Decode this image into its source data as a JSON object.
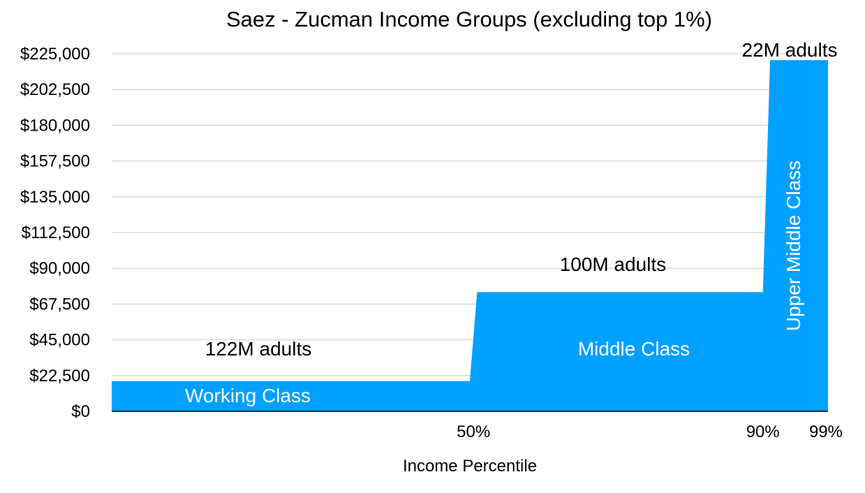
{
  "chart_data": {
    "type": "area",
    "title": "Saez - Zucman Income Groups (excluding top 1%)",
    "xlabel": "Income Percentile",
    "ylabel": "",
    "ylim": [
      0,
      225000
    ],
    "xlim": [
      0,
      99
    ],
    "y_ticks": [
      "$0",
      "$22,500",
      "$45,000",
      "$67,500",
      "$90,000",
      "$112,500",
      "$135,000",
      "$157,500",
      "$180,000",
      "$202,500",
      "$225,000"
    ],
    "y_tick_values": [
      0,
      22500,
      45000,
      67500,
      90000,
      112500,
      135000,
      157500,
      180000,
      202500,
      225000
    ],
    "x_ticks": [
      {
        "value": 50,
        "label": "50%"
      },
      {
        "value": 90,
        "label": "90%"
      },
      {
        "value": 99,
        "label": "99%"
      }
    ],
    "grid": true,
    "color": "#00a0ff",
    "points": [
      {
        "x": 0,
        "y": 19000
      },
      {
        "x": 49.5,
        "y": 19000
      },
      {
        "x": 50.5,
        "y": 75000
      },
      {
        "x": 90,
        "y": 75000
      },
      {
        "x": 91,
        "y": 221000
      },
      {
        "x": 99,
        "y": 221000
      }
    ],
    "groups": [
      {
        "label": "Working Class",
        "adults": "122M adults",
        "x_start": 0,
        "x_end": 50,
        "value": 19000
      },
      {
        "label": "Middle Class",
        "adults": "100M adults",
        "x_start": 50,
        "x_end": 90,
        "value": 75000
      },
      {
        "label": "Upper Middle Class",
        "adults": "22M adults",
        "x_start": 90,
        "x_end": 99,
        "value": 221000
      }
    ]
  }
}
